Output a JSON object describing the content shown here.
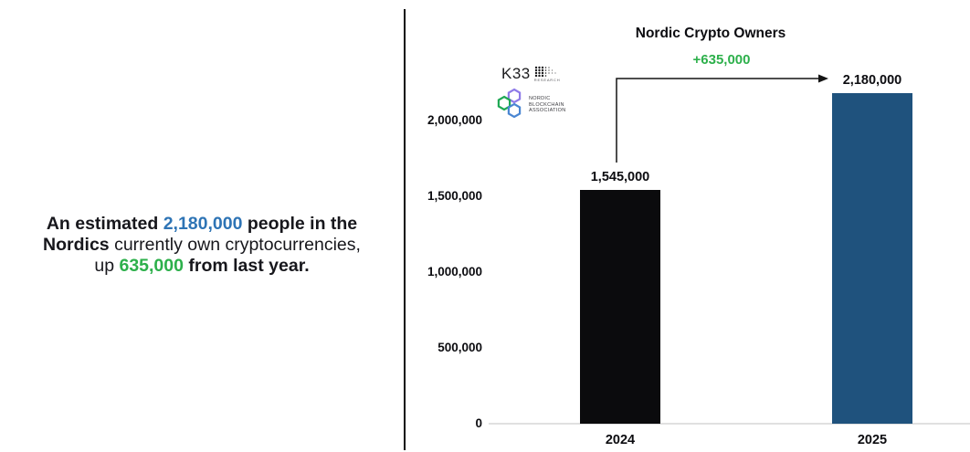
{
  "left_panel": {
    "line1": {
      "seg1": "An estimated ",
      "seg2": "2,180,000",
      "seg3": " people in the"
    },
    "line2": {
      "seg1": "Nordics",
      "seg2": " currently own cryptocurrencies,"
    },
    "line3": {
      "seg1": "up ",
      "seg2": "635,000",
      "seg3": " from last year."
    }
  },
  "logos": {
    "k33": {
      "name": "K33",
      "sub": "RESEARCH"
    },
    "nba": {
      "line1": "NORDIC",
      "line2": "BLOCKCHAIN",
      "line3": "ASSOCIATION"
    }
  },
  "chart_data": {
    "type": "bar",
    "title": "Nordic Crypto Owners",
    "categories": [
      "2024",
      "2025"
    ],
    "values": [
      1545000,
      2180000
    ],
    "value_labels": [
      "1,545,000",
      "2,180,000"
    ],
    "bar_colors": [
      "#0b0b0d",
      "#1f527d"
    ],
    "annotation": {
      "label": "+635,000",
      "from": "2024",
      "to": "2025",
      "color": "#2db04b"
    },
    "y_axis": {
      "ticks": [
        0,
        500000,
        1000000,
        1500000,
        2000000
      ],
      "tick_labels": [
        "0",
        "500,000",
        "1,000,000",
        "1,500,000",
        "2,000,000"
      ],
      "range": [
        0,
        2000000
      ]
    },
    "xlabel": "",
    "ylabel": "",
    "grid": false,
    "legend": false
  },
  "colors": {
    "accent_blue": "#2e74b5",
    "accent_green": "#2db04b",
    "bar_black": "#0b0b0d",
    "bar_blue": "#1f527d",
    "hex_green": "#1fa854",
    "hex_purple": "#8f7be8",
    "hex_blue": "#4a86d2"
  }
}
